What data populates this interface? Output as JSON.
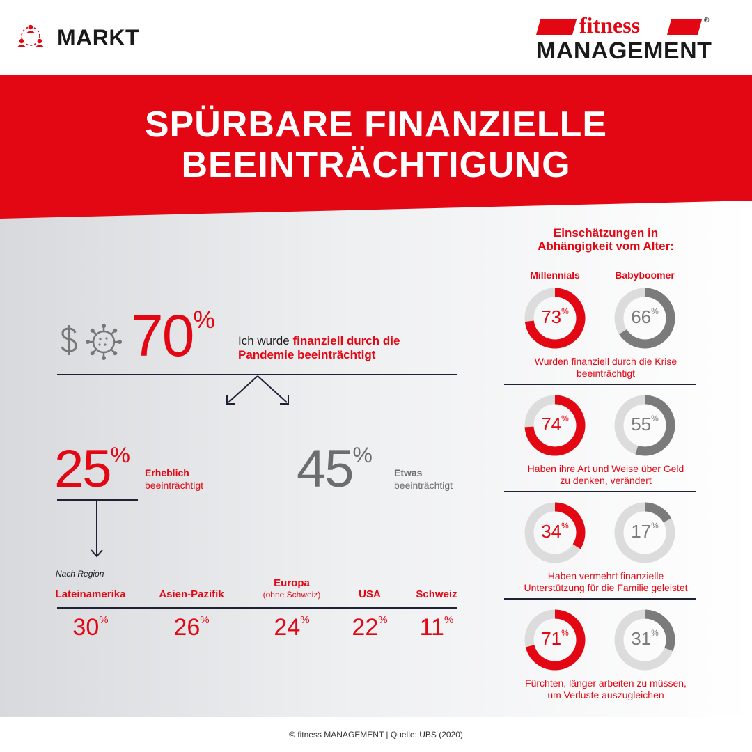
{
  "header": {
    "section_label": "MARKT",
    "logo_top": "fitness",
    "logo_bottom": "MANAGEMENT",
    "logo_mark": "®",
    "section_icon": "people-network-icon"
  },
  "title": {
    "line1": "SPÜRBARE FINANZIELLE",
    "line2": "BEEINTRÄCHTIGUNG"
  },
  "main_stat": {
    "value": "70",
    "unit": "%",
    "text_plain": "Ich wurde ",
    "text_bold": "finanziell durch die",
    "text_bold2": "Pandemie beeinträchtigt",
    "icons": [
      "dollar-icon",
      "virus-icon"
    ]
  },
  "split": {
    "strong": {
      "value": "25",
      "unit": "%",
      "label_bold": "Erheblich",
      "label": "beeinträchtigt"
    },
    "some": {
      "value": "45",
      "unit": "%",
      "label_bold": "Etwas",
      "label": "beeinträchtigt"
    }
  },
  "regions": {
    "heading": "Nach Region",
    "items": [
      {
        "name": "Lateinamerika",
        "sub": "",
        "value": "30",
        "unit": "%"
      },
      {
        "name": "Asien-Pazifik",
        "sub": "",
        "value": "26",
        "unit": "%"
      },
      {
        "name": "Europa",
        "sub": "(ohne Schweiz)",
        "value": "24",
        "unit": "%"
      },
      {
        "name": "USA",
        "sub": "",
        "value": "22",
        "unit": "%"
      },
      {
        "name": "Schweiz",
        "sub": "",
        "value": "11",
        "unit": "%"
      }
    ]
  },
  "age": {
    "heading_line1": "Einschätzungen in",
    "heading_line2": "Abhängigkeit vom Alter:",
    "col1": "Millennials",
    "col2": "Babyboomer"
  },
  "chart_data": {
    "type": "donut",
    "series": [
      {
        "name": "Millennials",
        "color": "#e30613",
        "values": [
          73,
          74,
          34,
          71
        ]
      },
      {
        "name": "Babyboomer",
        "color": "#7b7b7b",
        "values": [
          66,
          55,
          17,
          31
        ]
      }
    ],
    "categories": [
      [
        "Wurden finanziell durch die Krise",
        "beeinträchtigt"
      ],
      [
        "Haben ihre Art und Weise über Geld",
        "zu denken, verändert"
      ],
      [
        "Haben vermehrt finanzielle",
        "Unterstützung für die Familie geleistet"
      ],
      [
        "Fürchten, länger arbeiten zu müssen,",
        "um Verluste auszugleichen"
      ]
    ],
    "unit": "%",
    "track_color": "#dcdcdc"
  },
  "footer": {
    "text": "© fitness MANAGEMENT | Quelle: UBS (2020)"
  },
  "colors": {
    "accent": "#e30613",
    "grey": "#6d6d6d",
    "dark": "#1f2235"
  }
}
